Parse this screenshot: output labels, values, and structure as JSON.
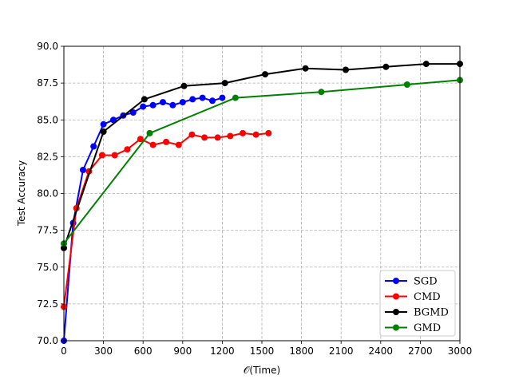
{
  "chart_data": {
    "type": "line",
    "title": "",
    "xlabel": "𝒪(Time)",
    "ylabel": "Test Accuracy",
    "xlim": [
      0,
      3000
    ],
    "ylim": [
      70.0,
      90.0
    ],
    "xticks": [
      0,
      300,
      600,
      900,
      1200,
      1500,
      1800,
      2100,
      2400,
      2700,
      3000
    ],
    "yticks": [
      70.0,
      72.5,
      75.0,
      77.5,
      80.0,
      82.5,
      85.0,
      87.5,
      90.0
    ],
    "xtick_labels": [
      "0",
      "300",
      "600",
      "900",
      "1200",
      "1500",
      "1800",
      "2100",
      "2400",
      "2700",
      "3000"
    ],
    "ytick_labels": [
      "70.0",
      "72.5",
      "75.0",
      "77.5",
      "80.0",
      "82.5",
      "85.0",
      "87.5",
      "90.0"
    ],
    "grid": true,
    "legend_position": "lower-right",
    "series": [
      {
        "name": "SGD",
        "color": "#0000ff",
        "x": [
          0,
          70,
          145,
          225,
          300,
          375,
          450,
          525,
          600,
          675,
          750,
          825,
          900,
          975,
          1050,
          1125,
          1200
        ],
        "y": [
          70.0,
          78.0,
          81.6,
          83.2,
          84.7,
          85.0,
          85.3,
          85.5,
          85.9,
          86.0,
          86.2,
          86.0,
          86.2,
          86.4,
          86.5,
          86.3,
          86.5
        ]
      },
      {
        "name": "CMD",
        "color": "#ff0000",
        "x": [
          0,
          95,
          190,
          290,
          385,
          480,
          580,
          675,
          775,
          870,
          970,
          1065,
          1165,
          1260,
          1355,
          1455,
          1550
        ],
        "y": [
          72.3,
          79.0,
          81.5,
          82.6,
          82.6,
          83.0,
          83.7,
          83.3,
          83.5,
          83.3,
          84.0,
          83.8,
          83.8,
          83.9,
          84.1,
          84.0,
          84.1
        ]
      },
      {
        "name": "BGMD",
        "color": "#000000",
        "x": [
          0,
          300,
          610,
          910,
          1220,
          1525,
          1830,
          2135,
          2440,
          2745,
          3000
        ],
        "y": [
          76.3,
          84.2,
          86.4,
          87.3,
          87.5,
          88.1,
          88.5,
          88.4,
          88.6,
          88.8,
          88.8
        ]
      },
      {
        "name": "GMD",
        "color": "#008000",
        "x": [
          0,
          650,
          1300,
          1950,
          2600,
          3000
        ],
        "y": [
          76.6,
          84.1,
          86.5,
          86.9,
          87.4,
          87.7
        ]
      }
    ]
  }
}
